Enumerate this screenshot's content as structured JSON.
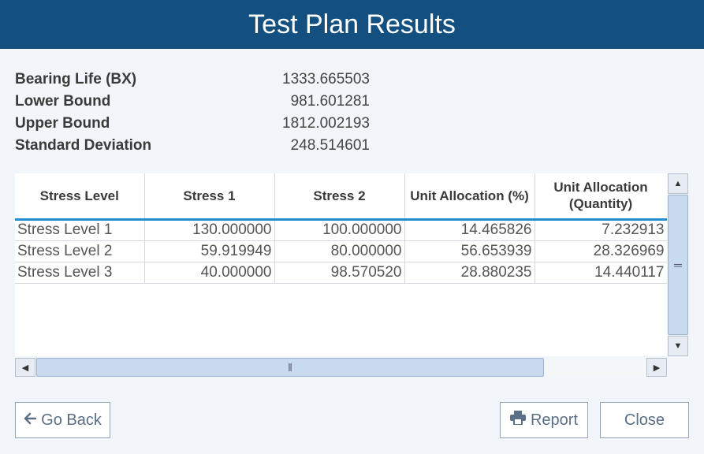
{
  "window": {
    "title": "Test Plan Results"
  },
  "summary": {
    "items": [
      {
        "label": "Bearing Life (BX)",
        "value": "1333.665503"
      },
      {
        "label": "Lower Bound",
        "value": "981.601281"
      },
      {
        "label": "Upper Bound",
        "value": "1812.002193"
      },
      {
        "label": "Standard Deviation",
        "value": "248.514601"
      }
    ]
  },
  "table": {
    "headers": [
      "Stress Level",
      "Stress 1",
      "Stress 2",
      "Unit Allocation (%)",
      "Unit Allocation (Quantity)"
    ],
    "rows": [
      [
        "Stress Level 1",
        "130.000000",
        "100.000000",
        "14.465826",
        "7.232913"
      ],
      [
        "Stress Level 2",
        "59.919949",
        "80.000000",
        "56.653939",
        "28.326969"
      ],
      [
        "Stress Level 3",
        "40.000000",
        "98.570520",
        "28.880235",
        "14.440117"
      ]
    ]
  },
  "buttons": {
    "go_back": "Go Back",
    "report": "Report",
    "close": "Close"
  },
  "icons": {
    "go_back": "arrow-left-icon",
    "report": "printer-icon"
  },
  "colors": {
    "titlebar": "#14507f",
    "header_underline": "#1e8ed0",
    "button_text": "#5b6f86"
  }
}
